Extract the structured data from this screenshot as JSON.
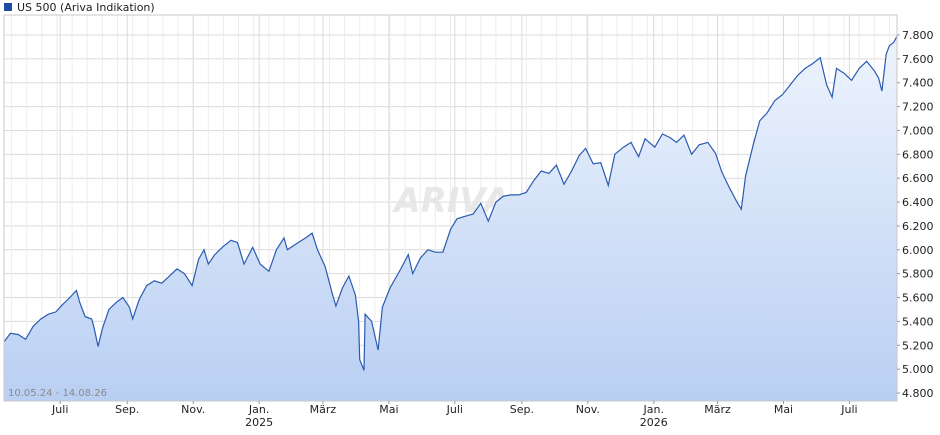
{
  "legend": {
    "label": "US 500 (Ariva Indikation)",
    "color": "#1f4e9e"
  },
  "range_label": "10.05.24 - 14.08.26",
  "watermark": "ARIVA",
  "colors": {
    "line": "#2a5bb0",
    "fill_top": "#eef4fd",
    "fill_bottom": "#b9cff3",
    "grid": "#dcdcdc"
  },
  "chart_data": {
    "type": "area",
    "series": [
      {
        "name": "US 500 (Ariva Indikation)",
        "points": [
          [
            "2024-05-10",
            5230
          ],
          [
            "2024-05-16",
            5300
          ],
          [
            "2024-05-23",
            5290
          ],
          [
            "2024-05-30",
            5250
          ],
          [
            "2024-06-06",
            5360
          ],
          [
            "2024-06-13",
            5420
          ],
          [
            "2024-06-20",
            5460
          ],
          [
            "2024-06-27",
            5480
          ],
          [
            "2024-07-03",
            5540
          ],
          [
            "2024-07-10",
            5600
          ],
          [
            "2024-07-16",
            5660
          ],
          [
            "2024-07-19",
            5560
          ],
          [
            "2024-07-24",
            5440
          ],
          [
            "2024-07-30",
            5420
          ],
          [
            "2024-08-01",
            5360
          ],
          [
            "2024-08-05",
            5190
          ],
          [
            "2024-08-09",
            5340
          ],
          [
            "2024-08-15",
            5500
          ],
          [
            "2024-08-22",
            5560
          ],
          [
            "2024-08-28",
            5600
          ],
          [
            "2024-09-03",
            5520
          ],
          [
            "2024-09-06",
            5420
          ],
          [
            "2024-09-12",
            5580
          ],
          [
            "2024-09-19",
            5700
          ],
          [
            "2024-09-26",
            5740
          ],
          [
            "2024-10-03",
            5720
          ],
          [
            "2024-10-10",
            5780
          ],
          [
            "2024-10-17",
            5840
          ],
          [
            "2024-10-24",
            5800
          ],
          [
            "2024-10-31",
            5700
          ],
          [
            "2024-11-06",
            5920
          ],
          [
            "2024-11-11",
            6000
          ],
          [
            "2024-11-15",
            5880
          ],
          [
            "2024-11-21",
            5960
          ],
          [
            "2024-11-29",
            6030
          ],
          [
            "2024-12-06",
            6080
          ],
          [
            "2024-12-12",
            6060
          ],
          [
            "2024-12-18",
            5880
          ],
          [
            "2024-12-26",
            6020
          ],
          [
            "2025-01-02",
            5880
          ],
          [
            "2025-01-10",
            5820
          ],
          [
            "2025-01-17",
            6000
          ],
          [
            "2025-01-24",
            6100
          ],
          [
            "2025-01-27",
            6000
          ],
          [
            "2025-02-06",
            6060
          ],
          [
            "2025-02-13",
            6100
          ],
          [
            "2025-02-19",
            6140
          ],
          [
            "2025-02-24",
            6000
          ],
          [
            "2025-03-03",
            5860
          ],
          [
            "2025-03-10",
            5620
          ],
          [
            "2025-03-13",
            5530
          ],
          [
            "2025-03-19",
            5680
          ],
          [
            "2025-03-25",
            5780
          ],
          [
            "2025-03-31",
            5620
          ],
          [
            "2025-04-03",
            5400
          ],
          [
            "2025-04-04",
            5080
          ],
          [
            "2025-04-08",
            4990
          ],
          [
            "2025-04-09",
            5460
          ],
          [
            "2025-04-15",
            5400
          ],
          [
            "2025-04-21",
            5160
          ],
          [
            "2025-04-25",
            5520
          ],
          [
            "2025-05-02",
            5680
          ],
          [
            "2025-05-12",
            5840
          ],
          [
            "2025-05-19",
            5960
          ],
          [
            "2025-05-23",
            5800
          ],
          [
            "2025-05-30",
            5930
          ],
          [
            "2025-06-06",
            6000
          ],
          [
            "2025-06-13",
            5980
          ],
          [
            "2025-06-20",
            5980
          ],
          [
            "2025-06-27",
            6170
          ],
          [
            "2025-07-03",
            6260
          ],
          [
            "2025-07-10",
            6280
          ],
          [
            "2025-07-18",
            6300
          ],
          [
            "2025-07-25",
            6390
          ],
          [
            "2025-08-01",
            6240
          ],
          [
            "2025-08-08",
            6400
          ],
          [
            "2025-08-15",
            6450
          ],
          [
            "2025-08-22",
            6460
          ],
          [
            "2025-08-29",
            6460
          ],
          [
            "2025-09-05",
            6480
          ],
          [
            "2025-09-12",
            6580
          ],
          [
            "2025-09-19",
            6660
          ],
          [
            "2025-09-26",
            6640
          ],
          [
            "2025-10-03",
            6710
          ],
          [
            "2025-10-10",
            6550
          ],
          [
            "2025-10-17",
            6660
          ],
          [
            "2025-10-24",
            6790
          ],
          [
            "2025-10-30",
            6850
          ],
          [
            "2025-11-06",
            6720
          ],
          [
            "2025-11-13",
            6730
          ],
          [
            "2025-11-20",
            6540
          ],
          [
            "2025-11-26",
            6800
          ],
          [
            "2025-12-04",
            6860
          ],
          [
            "2025-12-11",
            6900
          ],
          [
            "2025-12-18",
            6780
          ],
          [
            "2025-12-24",
            6930
          ],
          [
            "2026-01-02",
            6860
          ],
          [
            "2026-01-09",
            6970
          ],
          [
            "2026-01-16",
            6940
          ],
          [
            "2026-01-22",
            6900
          ],
          [
            "2026-01-29",
            6960
          ],
          [
            "2026-02-05",
            6800
          ],
          [
            "2026-02-12",
            6880
          ],
          [
            "2026-02-20",
            6900
          ],
          [
            "2026-02-27",
            6810
          ],
          [
            "2026-03-05",
            6650
          ],
          [
            "2026-03-12",
            6520
          ],
          [
            "2026-03-19",
            6400
          ],
          [
            "2026-03-23",
            6340
          ],
          [
            "2026-03-27",
            6620
          ],
          [
            "2026-04-03",
            6880
          ],
          [
            "2026-04-09",
            7080
          ],
          [
            "2026-04-16",
            7150
          ],
          [
            "2026-04-23",
            7250
          ],
          [
            "2026-04-30",
            7300
          ],
          [
            "2026-05-07",
            7380
          ],
          [
            "2026-05-14",
            7460
          ],
          [
            "2026-05-21",
            7520
          ],
          [
            "2026-05-28",
            7560
          ],
          [
            "2026-06-04",
            7610
          ],
          [
            "2026-06-10",
            7380
          ],
          [
            "2026-06-15",
            7280
          ],
          [
            "2026-06-19",
            7520
          ],
          [
            "2026-06-26",
            7480
          ],
          [
            "2026-07-03",
            7420
          ],
          [
            "2026-07-10",
            7520
          ],
          [
            "2026-07-17",
            7580
          ],
          [
            "2026-07-24",
            7500
          ],
          [
            "2026-07-28",
            7440
          ],
          [
            "2026-07-31",
            7330
          ],
          [
            "2026-08-04",
            7640
          ],
          [
            "2026-08-07",
            7710
          ],
          [
            "2026-08-11",
            7740
          ],
          [
            "2026-08-14",
            7790
          ]
        ]
      }
    ],
    "x_range": [
      "2024-05-10",
      "2026-08-14"
    ],
    "ylim": [
      4800,
      7800
    ],
    "y_ticks": [
      {
        "value": 4800,
        "label": "4.800"
      },
      {
        "value": 5000,
        "label": "5.000"
      },
      {
        "value": 5200,
        "label": "5.200"
      },
      {
        "value": 5400,
        "label": "5.400"
      },
      {
        "value": 5600,
        "label": "5.600"
      },
      {
        "value": 5800,
        "label": "5.800"
      },
      {
        "value": 6000,
        "label": "6.000"
      },
      {
        "value": 6200,
        "label": "6.200"
      },
      {
        "value": 6400,
        "label": "6.400"
      },
      {
        "value": 6600,
        "label": "6.600"
      },
      {
        "value": 6800,
        "label": "6.800"
      },
      {
        "value": 7000,
        "label": "7.000"
      },
      {
        "value": 7200,
        "label": "7.200"
      },
      {
        "value": 7400,
        "label": "7.400"
      },
      {
        "value": 7600,
        "label": "7.600"
      },
      {
        "value": 7800,
        "label": "7.800"
      }
    ],
    "x_ticks": [
      {
        "date": "2024-07-01",
        "label": "Juli",
        "year": ""
      },
      {
        "date": "2024-09-01",
        "label": "Sep.",
        "year": ""
      },
      {
        "date": "2024-11-01",
        "label": "Nov.",
        "year": ""
      },
      {
        "date": "2025-01-01",
        "label": "Jan.",
        "year": "2025"
      },
      {
        "date": "2025-03-01",
        "label": "März",
        "year": ""
      },
      {
        "date": "2025-05-01",
        "label": "Mai",
        "year": ""
      },
      {
        "date": "2025-07-01",
        "label": "Juli",
        "year": ""
      },
      {
        "date": "2025-09-01",
        "label": "Sep.",
        "year": ""
      },
      {
        "date": "2025-11-01",
        "label": "Nov.",
        "year": ""
      },
      {
        "date": "2026-01-01",
        "label": "Jan.",
        "year": "2026"
      },
      {
        "date": "2026-03-01",
        "label": "März",
        "year": ""
      },
      {
        "date": "2026-05-01",
        "label": "Mai",
        "year": ""
      },
      {
        "date": "2026-07-01",
        "label": "Juli",
        "year": ""
      }
    ],
    "grid": true,
    "legend_position": "top-left"
  }
}
